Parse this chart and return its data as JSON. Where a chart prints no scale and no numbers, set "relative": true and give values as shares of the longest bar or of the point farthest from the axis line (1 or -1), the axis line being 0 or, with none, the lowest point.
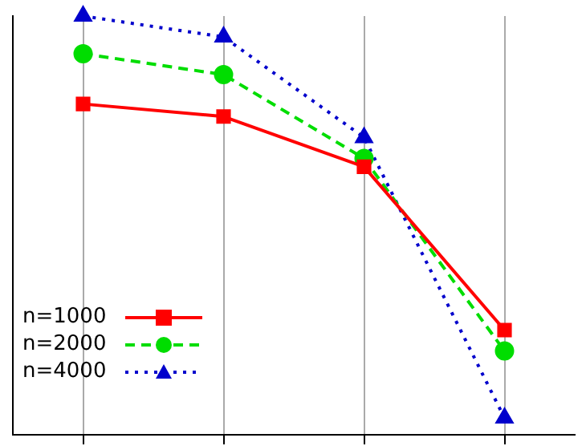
{
  "chart_data": {
    "type": "line",
    "relative": true,
    "categories": [
      null,
      null,
      null,
      null
    ],
    "grid": "x",
    "legend": "bottom left",
    "series": [
      {
        "name": "n=1000",
        "color": "#ff0000",
        "marker": "square",
        "line_style": "solid",
        "values": [
          0.79,
          0.76,
          0.64,
          0.25
        ]
      },
      {
        "name": "n=2000",
        "color": "#00dd00",
        "marker": "circle",
        "line_style": "dashed",
        "values": [
          0.91,
          0.86,
          0.66,
          0.2
        ]
      },
      {
        "name": "n=4000",
        "color": "#0000cc",
        "marker": "triangle",
        "line_style": "dotted",
        "values": [
          1,
          0.95,
          0.71,
          0.04
        ]
      }
    ]
  }
}
